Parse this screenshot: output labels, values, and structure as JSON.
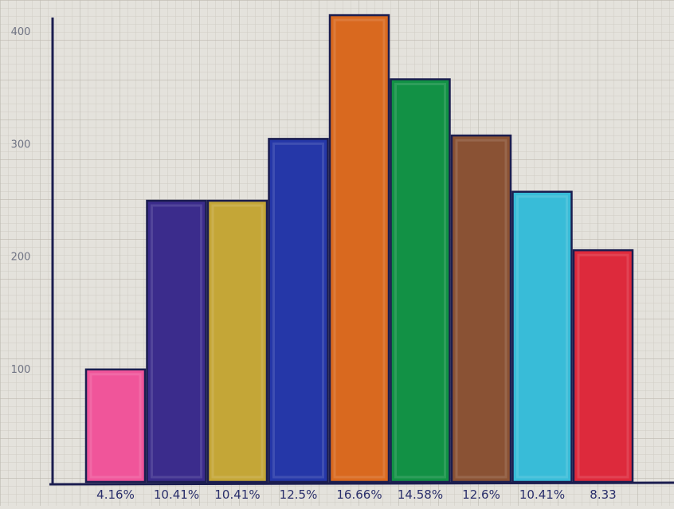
{
  "chart_data": {
    "type": "bar",
    "categories": [
      "4.16%",
      "10.41%",
      "10.41%",
      "12.5%",
      "16.66%",
      "14.58%",
      "12.6%",
      "10.41%",
      "8.33"
    ],
    "values": [
      100,
      250,
      250,
      305,
      415,
      358,
      308,
      258,
      206
    ],
    "colors": [
      "#f0559a",
      "#3b2c8c",
      "#c4a637",
      "#2537a8",
      "#d9691f",
      "#129145",
      "#8a5234",
      "#38bcd8",
      "#dd2a3c"
    ],
    "yticks": [
      100,
      200,
      300,
      400
    ],
    "ylim": [
      0,
      420
    ],
    "grid": true,
    "title": "",
    "xlabel": "",
    "ylabel": ""
  }
}
